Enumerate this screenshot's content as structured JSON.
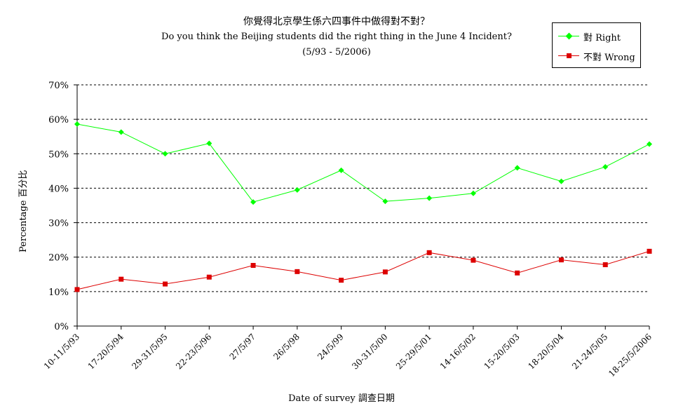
{
  "chart_data": {
    "type": "line",
    "title": "你覺得北京學生係六四事件中做得對不對？",
    "subtitle": "Do you think the Beijing students did the right thing in the June 4 Incident?",
    "period": "(5/93 - 5/2006)",
    "xlabel": "Date of survey  調查日期",
    "ylabel": "Percentage  百分比",
    "ylim": [
      0,
      70
    ],
    "yticks": [
      "0%",
      "10%",
      "20%",
      "30%",
      "40%",
      "50%",
      "60%",
      "70%"
    ],
    "grid": true,
    "legend_position": "top-right",
    "categories": [
      "10-11/5/93",
      "17-20/5/94",
      "29-31/5/95",
      "22-23/5/96",
      "27/5/97",
      "26/5/98",
      "24/5/99",
      "30-31/5/00",
      "25-29/5/01",
      "14-16/5/02",
      "15-20/5/03",
      "18-20/5/04",
      "21-24/5/05",
      "18-25/5/2006"
    ],
    "series": [
      {
        "name": "對 Right",
        "color": "#00ff00",
        "marker": "diamond",
        "values": [
          58.6,
          56.3,
          50.0,
          53.0,
          36.0,
          39.5,
          45.2,
          36.2,
          37.1,
          38.5,
          45.9,
          42.0,
          46.2,
          52.8
        ]
      },
      {
        "name": "不對 Wrong",
        "color": "#dd0000",
        "marker": "square",
        "values": [
          10.6,
          13.6,
          12.2,
          14.2,
          17.6,
          15.8,
          13.3,
          15.7,
          21.3,
          19.1,
          15.4,
          19.2,
          17.8,
          21.7
        ]
      }
    ]
  }
}
